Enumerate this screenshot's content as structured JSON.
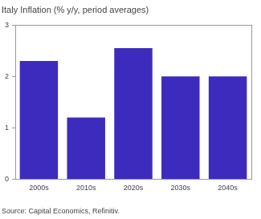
{
  "chart_data": {
    "type": "bar",
    "title": "Italy Inflation (% y/y, period averages)",
    "source": "Source: Capital Economics, Refinitiv.",
    "categories": [
      "2000s",
      "2010s",
      "2020s",
      "2030s",
      "2040s"
    ],
    "values": [
      2.3,
      1.2,
      2.55,
      2.0,
      2.0
    ],
    "color": "#3d2bbd",
    "ylim": [
      0,
      3
    ],
    "yticks": [
      0,
      1,
      2,
      3
    ],
    "grid": false
  }
}
